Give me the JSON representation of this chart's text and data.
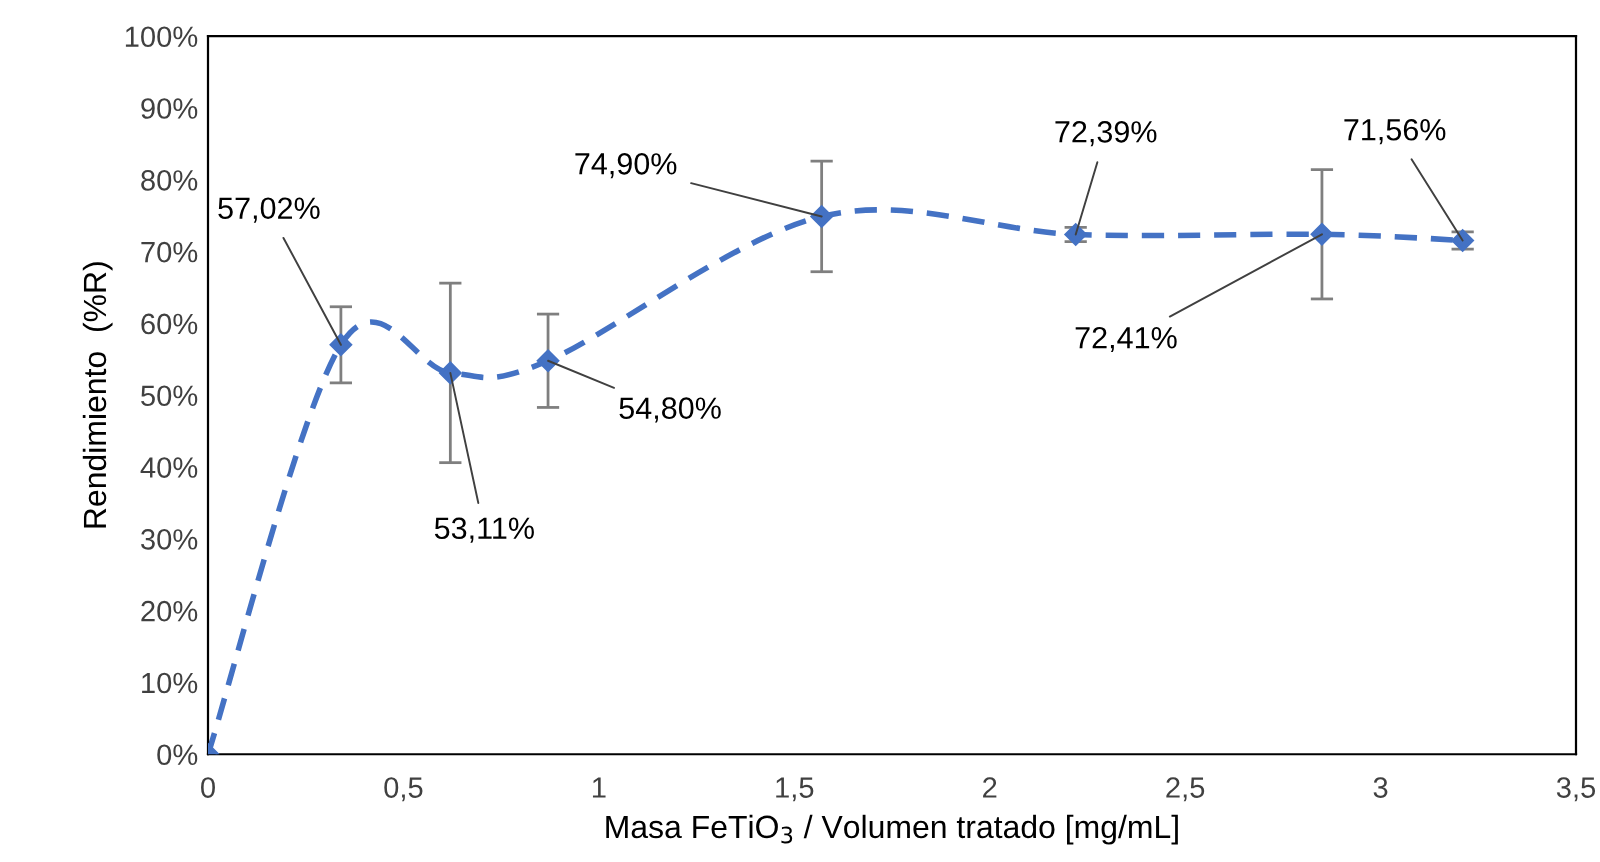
{
  "chart_data": {
    "type": "line",
    "xlabel": "Masa FeTiO$_{3}$ / Volumen tratado [mg/mL]",
    "ylabel": "Rendimiento  (%R)",
    "x": [
      0,
      0.34,
      0.62,
      0.87,
      1.57,
      2.22,
      2.85,
      3.21
    ],
    "series": [
      {
        "color": "#4472c4",
        "values": [
          0,
          57.02,
          53.11,
          54.8,
          74.9,
          72.39,
          72.41,
          71.56
        ],
        "errors": [
          null,
          5.3,
          12.5,
          6.5,
          7.7,
          1,
          9,
          1.2
        ],
        "value_labels": [
          null,
          "57,02%",
          "53,11%",
          "54,80%",
          "74,90%",
          "72,39%",
          "72,41%",
          "71,56%"
        ]
      }
    ],
    "xlim": [
      0,
      3.5
    ],
    "xticks": [
      0,
      {
        "value": 0.5,
        "label": "0,5"
      },
      1,
      {
        "value": 1.5,
        "label": "1,5"
      },
      2,
      {
        "value": 2.5,
        "label": "2,5"
      },
      3,
      {
        "value": 3.5,
        "label": "3,5"
      }
    ],
    "ylim": [
      0,
      100
    ],
    "yticks": [
      {
        "value": 0,
        "label": "0%"
      },
      {
        "value": 10,
        "label": "10%"
      },
      {
        "value": 20,
        "label": "20%"
      },
      {
        "value": 30,
        "label": "30%"
      },
      {
        "value": 40,
        "label": "40%"
      },
      {
        "value": 50,
        "label": "50%"
      },
      {
        "value": 60,
        "label": "60%"
      },
      {
        "value": 70,
        "label": "70%"
      },
      {
        "value": 80,
        "label": "80%"
      },
      {
        "value": 90,
        "label": "90%"
      },
      {
        "value": 100,
        "label": "100%"
      }
    ],
    "grid": false,
    "legend": false,
    "marker": "diamond",
    "line_style": "dashed"
  }
}
